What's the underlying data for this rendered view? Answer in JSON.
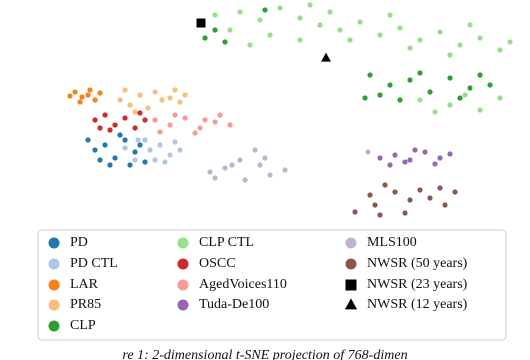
{
  "chart_data": {
    "type": "scatter",
    "xlim": [
      0,
      530
    ],
    "ylim": [
      230,
      0
    ],
    "series": [
      {
        "name": "PD",
        "color": "#1f77b4",
        "marker": "o",
        "x": [
          88,
          95,
          105,
          115,
          125,
          135,
          145,
          100,
          120,
          140,
          110,
          130
        ],
        "y": [
          140,
          150,
          145,
          158,
          140,
          152,
          162,
          160,
          135,
          145,
          165,
          165
        ]
      },
      {
        "name": "PD CTL",
        "color": "#aec7e8",
        "marker": "o",
        "x": [
          125,
          138,
          150,
          160,
          170,
          180,
          155,
          145,
          165,
          135,
          175
        ],
        "y": [
          148,
          140,
          150,
          145,
          155,
          150,
          160,
          140,
          162,
          160,
          142
        ]
      },
      {
        "name": "LAR",
        "color": "#ff7f0e",
        "marker": "o",
        "x": [
          75,
          82,
          90,
          95,
          80,
          88,
          70,
          100
        ],
        "y": [
          92,
          97,
          90,
          100,
          102,
          95,
          96,
          93
        ]
      },
      {
        "name": "PR85",
        "color": "#ffbb78",
        "marker": "o",
        "x": [
          125,
          140,
          155,
          170,
          180,
          130,
          148,
          162,
          135,
          175,
          120,
          185
        ],
        "y": [
          90,
          95,
          92,
          98,
          102,
          105,
          108,
          100,
          112,
          90,
          100,
          95
        ]
      },
      {
        "name": "CLP",
        "color": "#2ca02c",
        "marker": "o",
        "x": [
          200,
          205,
          215,
          225,
          265,
          370,
          390,
          410,
          430,
          450,
          470,
          480,
          365,
          380,
          400,
          420,
          460,
          490
        ],
        "y": [
          25,
          38,
          30,
          42,
          10,
          75,
          85,
          80,
          92,
          78,
          88,
          75,
          98,
          95,
          100,
          73,
          98,
          85
        ]
      },
      {
        "name": "CLP CTL",
        "color": "#98df8a",
        "marker": "o",
        "x": [
          215,
          240,
          260,
          280,
          300,
          320,
          340,
          360,
          380,
          400,
          420,
          440,
          460,
          480,
          500,
          510,
          230,
          270,
          310,
          330,
          350,
          390,
          410,
          450,
          470,
          300,
          250,
          420,
          450,
          480,
          500,
          435,
          465
        ],
        "y": [
          15,
          12,
          20,
          8,
          18,
          25,
          30,
          22,
          35,
          28,
          40,
          32,
          45,
          38,
          50,
          42,
          30,
          35,
          5,
          12,
          40,
          15,
          48,
          55,
          25,
          40,
          45,
          100,
          105,
          110,
          98,
          112,
          95
        ]
      },
      {
        "name": "OSCC",
        "color": "#d62728",
        "marker": "o",
        "x": [
          95,
          105,
          115,
          125,
          135,
          145,
          110,
          140,
          100
        ],
        "y": [
          120,
          115,
          125,
          118,
          128,
          120,
          130,
          113,
          128
        ]
      },
      {
        "name": "AgedVoices110",
        "color": "#ff9896",
        "marker": "o",
        "x": [
          155,
          170,
          185,
          200,
          215,
          230,
          160,
          195,
          220,
          175,
          205
        ],
        "y": [
          120,
          125,
          118,
          128,
          122,
          125,
          132,
          133,
          115,
          115,
          120
        ]
      },
      {
        "name": "Tuda-De100",
        "color": "#9467bd",
        "marker": "o",
        "x": [
          380,
          395,
          410,
          425,
          440,
          450,
          390,
          415,
          435,
          405
        ],
        "y": [
          158,
          155,
          160,
          152,
          158,
          154,
          165,
          150,
          164,
          162
        ]
      },
      {
        "name": "MLS100",
        "color": "#c5b0d5",
        "marker": "o",
        "x": [
          210,
          225,
          240,
          255,
          260,
          270,
          285,
          215,
          245,
          265,
          232,
          368
        ],
        "y": [
          172,
          168,
          160,
          150,
          165,
          175,
          170,
          178,
          180,
          158,
          165,
          152
        ]
      },
      {
        "name": "NWSR (50 years)",
        "color": "#8c564b",
        "marker": "o",
        "x": [
          355,
          375,
          380,
          395,
          410,
          420,
          430,
          445,
          455,
          405,
          370,
          385,
          440
        ],
        "y": [
          212,
          205,
          215,
          192,
          200,
          190,
          198,
          205,
          192,
          213,
          195,
          185,
          188
        ]
      },
      {
        "name": "NWSR (23 years)",
        "color": "#000000",
        "marker": "s",
        "x": [
          201
        ],
        "y": [
          23
        ]
      },
      {
        "name": "NWSR (12 years)",
        "color": "#000000",
        "marker": "^",
        "x": [
          326
        ],
        "y": [
          58
        ]
      }
    ],
    "caption": "re 1: 2-dimensional t-SNE projection of 768-dimen"
  }
}
